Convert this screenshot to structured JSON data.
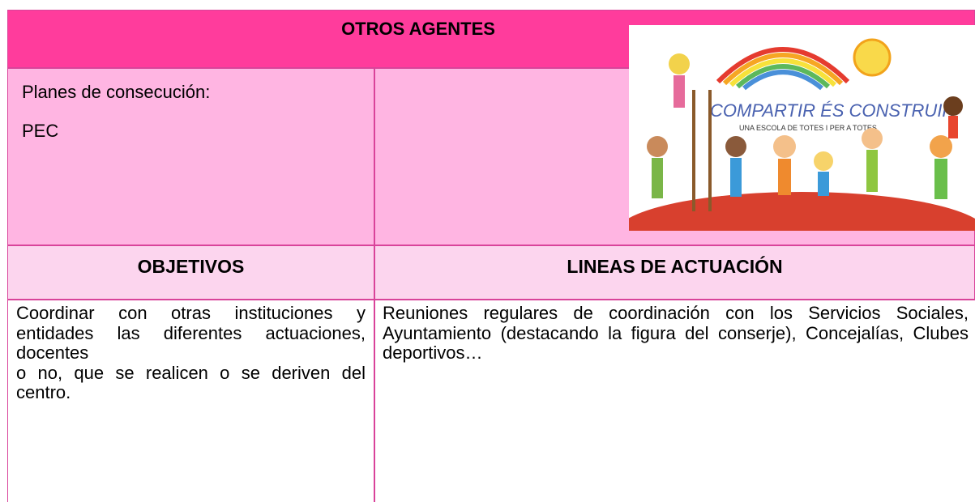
{
  "header": {
    "title": "OTROS AGENTES"
  },
  "plans": {
    "label": "Planes de consecución:",
    "value": "PEC"
  },
  "image": {
    "title": "COMPARTIR ÉS CONSTRUIR",
    "subtitle": "UNA ESCOLA DE TOTES I PER A TOTES"
  },
  "table": {
    "headers": [
      "OBJETIVOS",
      "LINEAS DE ACTUACIÓN"
    ],
    "objectives": [
      "Coordinar con otras instituciones y",
      "entidades las diferentes actuaciones, docentes",
      "o no, que se realicen o se deriven del centro."
    ],
    "actions": "Reuniones regulares de coordinación con los Servicios Sociales, Ayuntamiento (destacando la figura del conserje), Concejalías, Clubes deportivos…"
  }
}
